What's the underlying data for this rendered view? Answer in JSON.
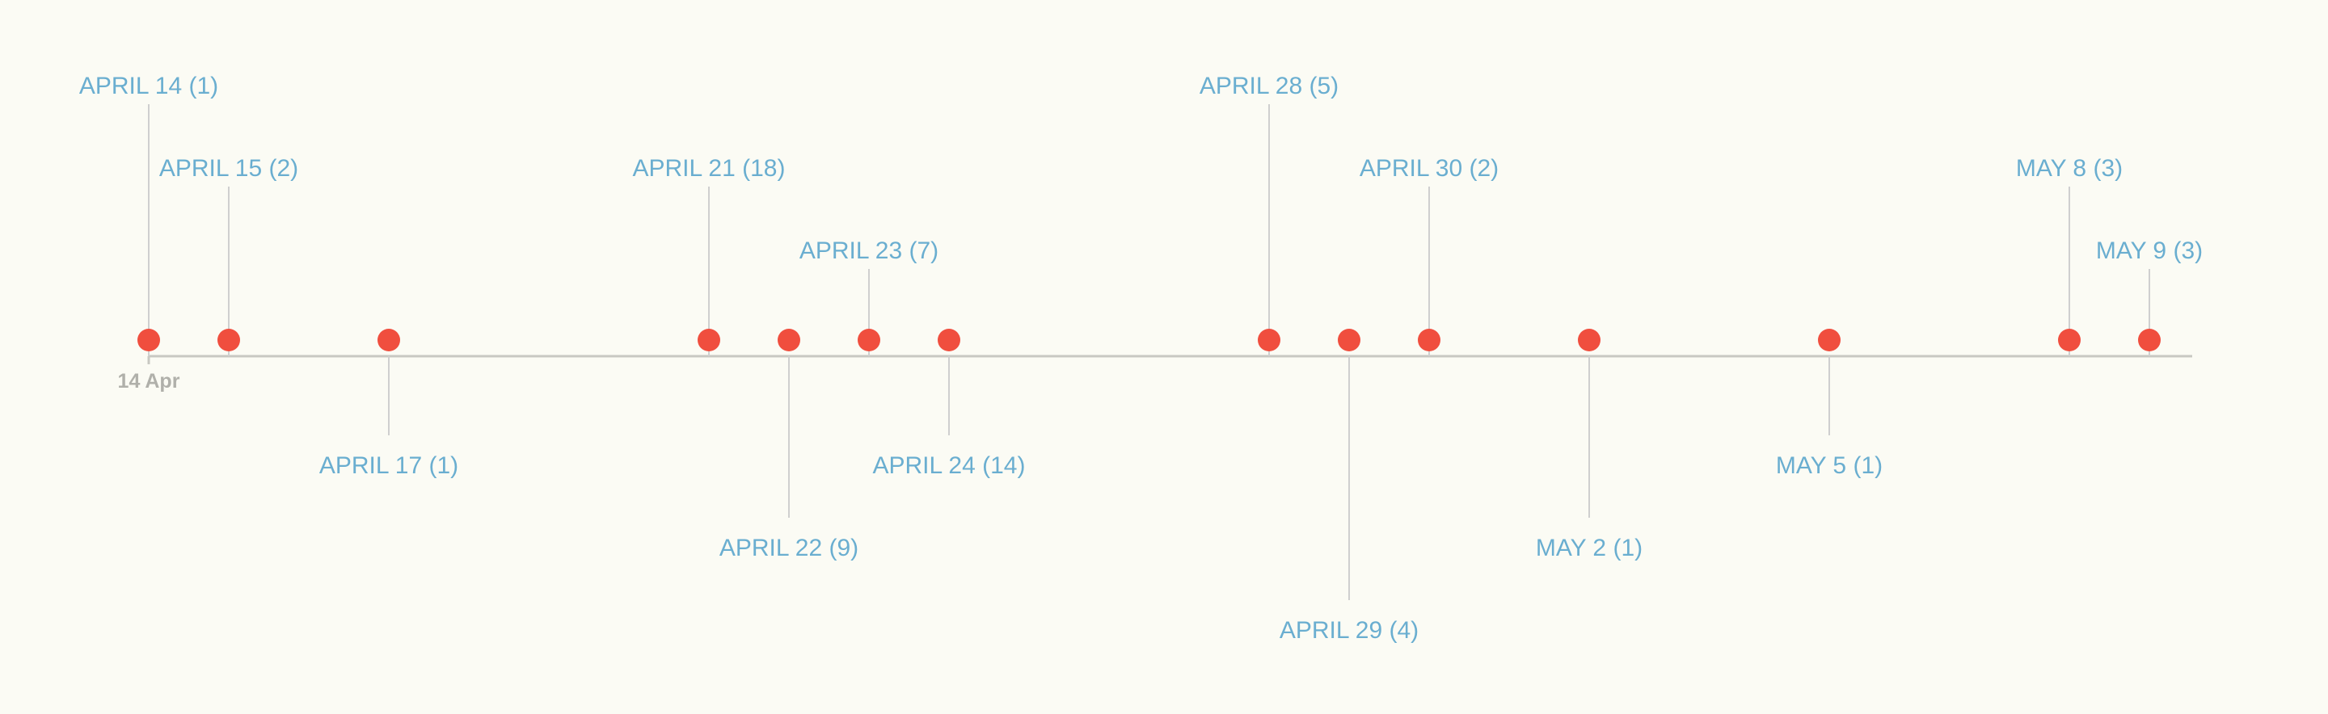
{
  "chart_data": {
    "type": "timeline",
    "axis": {
      "start_tick_label": "14 Apr"
    },
    "events": [
      {
        "date": "2024-04-14",
        "label": "APRIL 14 (1)",
        "count": 1
      },
      {
        "date": "2024-04-15",
        "label": "APRIL 15 (2)",
        "count": 2
      },
      {
        "date": "2024-04-17",
        "label": "APRIL 17 (1)",
        "count": 1
      },
      {
        "date": "2024-04-21",
        "label": "APRIL 21 (18)",
        "count": 18
      },
      {
        "date": "2024-04-22",
        "label": "APRIL 22 (9)",
        "count": 9
      },
      {
        "date": "2024-04-23",
        "label": "APRIL 23 (7)",
        "count": 7
      },
      {
        "date": "2024-04-24",
        "label": "APRIL 24 (14)",
        "count": 14
      },
      {
        "date": "2024-04-28",
        "label": "APRIL 28 (5)",
        "count": 5
      },
      {
        "date": "2024-04-29",
        "label": "APRIL 29 (4)",
        "count": 4
      },
      {
        "date": "2024-04-30",
        "label": "APRIL 30 (2)",
        "count": 2
      },
      {
        "date": "2024-05-02",
        "label": "MAY 2 (1)",
        "count": 1
      },
      {
        "date": "2024-05-05",
        "label": "MAY 5 (1)",
        "count": 1
      },
      {
        "date": "2024-05-08",
        "label": "MAY 8 (3)",
        "count": 3
      },
      {
        "date": "2024-05-09",
        "label": "MAY 9 (3)",
        "count": 3
      }
    ],
    "colors": {
      "marker": "#f04e3e",
      "label": "#6aaed0",
      "axis": "#c8c8c2",
      "connector": "#cfcfcf",
      "tick_label": "#b0b0aa"
    }
  }
}
